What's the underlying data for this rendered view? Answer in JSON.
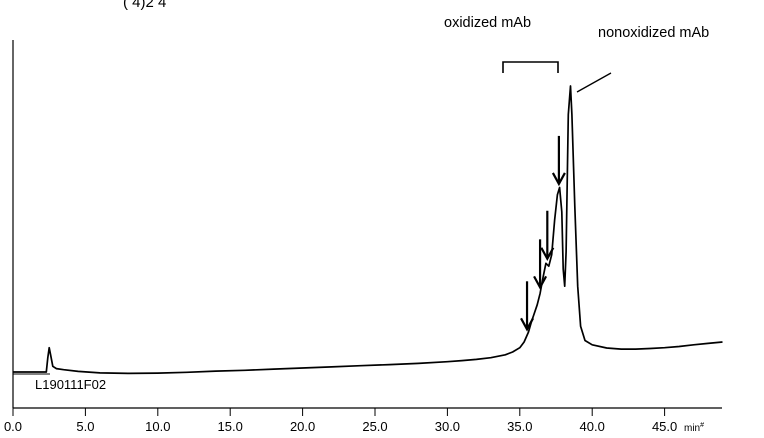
{
  "chart_data": {
    "type": "line",
    "title": "",
    "xlabel": "",
    "ylabel": "",
    "x_unit": "min",
    "x_unit_mark": "#",
    "xlim": [
      0,
      49
    ],
    "ylim": [
      0,
      100
    ],
    "x_ticks": [
      "0.0",
      "5.0",
      "10.0",
      "15.0",
      "20.0",
      "25.0",
      "30.0",
      "35.0",
      "40.0",
      "45.0"
    ],
    "top_cut_text": "(      4)2       4",
    "sample_label": "L190111F02",
    "annotations": {
      "oxidized": "oxidized mAb",
      "nonoxidized": "nonoxidized mAb"
    },
    "arrow_positions_min": [
      35.5,
      36.4,
      36.9,
      37.7
    ],
    "series": [
      {
        "x": [
          0.0,
          2.3,
          2.4,
          2.5,
          2.6,
          2.75,
          3.0,
          3.5,
          4.5,
          6.0,
          8.0,
          10.0,
          12.0,
          14.0,
          16.0,
          18.0,
          20.0,
          22.0,
          24.0,
          26.0,
          28.0,
          30.0,
          31.0,
          32.0,
          33.0,
          34.0,
          34.5,
          35.0,
          35.3,
          35.6,
          35.8,
          36.0,
          36.2,
          36.4,
          36.6,
          36.8,
          37.0,
          37.2,
          37.4,
          37.6,
          37.75,
          37.9,
          38.0,
          38.1,
          38.2,
          38.35,
          38.5,
          38.6,
          38.8,
          39.0,
          39.2,
          39.5,
          40.0,
          41.0,
          42.0,
          43.0,
          44.0,
          45.0,
          46.0,
          47.0,
          48.0,
          49.0
        ],
        "y": [
          0.0,
          0.0,
          5.0,
          8.5,
          6.0,
          2.0,
          1.2,
          0.8,
          0.2,
          -0.3,
          -0.5,
          -0.4,
          -0.1,
          0.3,
          0.6,
          1.0,
          1.4,
          1.8,
          2.2,
          2.6,
          3.0,
          3.6,
          4.0,
          4.4,
          5.0,
          6.0,
          7.0,
          8.5,
          10.5,
          14.0,
          17.5,
          20.5,
          23.5,
          27.5,
          33.0,
          38.0,
          37.0,
          41.0,
          53.0,
          62.0,
          64.5,
          56.0,
          36.0,
          30.0,
          42.0,
          90.0,
          100.0,
          90.0,
          58.0,
          30.0,
          16.0,
          11.0,
          9.5,
          8.4,
          8.0,
          8.0,
          8.2,
          8.5,
          8.9,
          9.5,
          10.0,
          10.5
        ]
      }
    ]
  }
}
